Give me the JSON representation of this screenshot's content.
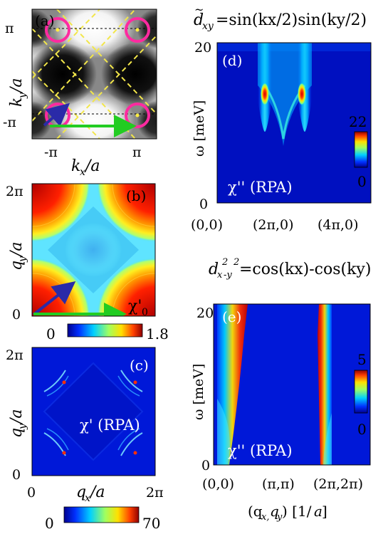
{
  "panels": {
    "a": {
      "tag": "(a)",
      "x_label": "k",
      "x_sub": "x",
      "x_unit": " /a",
      "y_label": "k",
      "y_sub": "y",
      "y_unit": " /a",
      "x_ticks": [
        "-π",
        "π"
      ],
      "y_ticks": [
        "-π",
        "π"
      ]
    },
    "b": {
      "tag": "(b)",
      "y_label": "q",
      "y_sub": "y",
      "y_unit": "/a",
      "y_ticks": [
        "0",
        "2π"
      ],
      "chi_label": "χ'",
      "chi_sub": "0",
      "colorbar": {
        "min": "0",
        "max": "1.8"
      }
    },
    "c": {
      "tag": "(c)",
      "x_label": "q",
      "x_sub": "x",
      "x_unit": "/a",
      "y_label": "q",
      "y_sub": "y",
      "y_unit": "/a",
      "x_ticks": [
        "0",
        "2π"
      ],
      "y_ticks": [
        "0",
        "2π"
      ],
      "inner_label": "χ' (RPA)",
      "colorbar": {
        "min": "0",
        "max": "70"
      }
    },
    "d": {
      "tag": "(d)",
      "title_lhs": "d",
      "title_sub": "xy",
      "title_rhs": " =sin(k",
      "title_full": "=sin(kx/2)sin(ky/2)",
      "y_label": "ω [meV]",
      "y_ticks": [
        "0",
        "20"
      ],
      "x_ticks": [
        "(0,0)",
        "(2π,0)",
        "(4π,0)"
      ],
      "inner_label": "χ'' (RPA)",
      "colorbar": {
        "min": "0",
        "max": "22"
      }
    },
    "e": {
      "tag": "(e)",
      "title_lhs": "d",
      "title_full": "=cos(kx)-cos(ky)",
      "y_label": "ω [meV]",
      "y_ticks": [
        "0",
        "20"
      ],
      "x_ticks": [
        "(0,0)",
        "(π,π)",
        "(2π,2π)"
      ],
      "x_label": "(q",
      "inner_label": "χ'' (RPA)",
      "colorbar": {
        "min": "0",
        "max": "5"
      }
    }
  },
  "colors": {
    "ring": "#ff2aa0",
    "dash_yellow": "#f2e64a",
    "arrow_green": "#22cc22",
    "arrow_blue": "#2a2aa8",
    "deep_blue": "#0018d8"
  }
}
